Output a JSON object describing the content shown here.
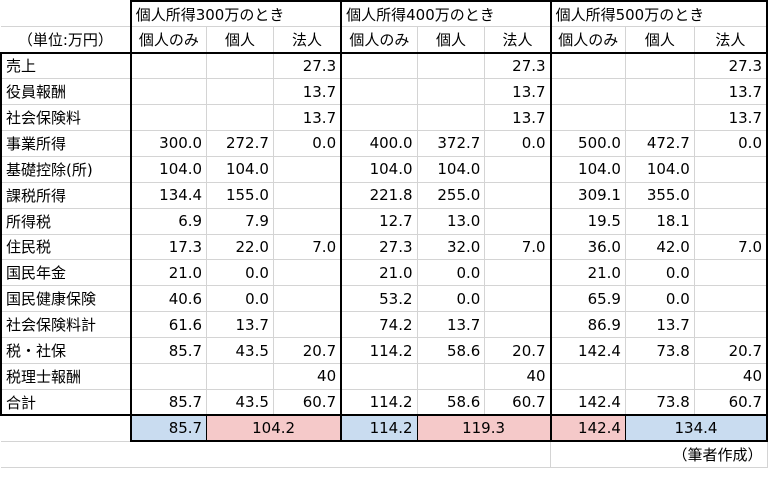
{
  "header": {
    "unit_label": "（単位:万円）",
    "groups": [
      "個人所得300万のとき",
      "個人所得400万のとき",
      "個人所得500万のとき"
    ],
    "subheaders": [
      "個人のみ",
      "個人",
      "法人"
    ]
  },
  "rows": [
    {
      "label": "売上",
      "values": [
        "",
        "",
        "27.3",
        "",
        "",
        "27.3",
        "",
        "",
        "27.3"
      ]
    },
    {
      "label": "役員報酬",
      "values": [
        "",
        "",
        "13.7",
        "",
        "",
        "13.7",
        "",
        "",
        "13.7"
      ]
    },
    {
      "label": "社会保険料",
      "values": [
        "",
        "",
        "13.7",
        "",
        "",
        "13.7",
        "",
        "",
        "13.7"
      ]
    },
    {
      "label": "事業所得",
      "values": [
        "300.0",
        "272.7",
        "0.0",
        "400.0",
        "372.7",
        "0.0",
        "500.0",
        "472.7",
        "0.0"
      ]
    },
    {
      "label": "基礎控除(所)",
      "values": [
        "104.0",
        "104.0",
        "",
        "104.0",
        "104.0",
        "",
        "104.0",
        "104.0",
        ""
      ]
    },
    {
      "label": "課税所得",
      "values": [
        "134.4",
        "155.0",
        "",
        "221.8",
        "255.0",
        "",
        "309.1",
        "355.0",
        ""
      ]
    },
    {
      "label": "所得税",
      "values": [
        "6.9",
        "7.9",
        "",
        "12.7",
        "13.0",
        "",
        "19.5",
        "18.1",
        ""
      ]
    },
    {
      "label": "住民税",
      "values": [
        "17.3",
        "22.0",
        "7.0",
        "27.3",
        "32.0",
        "7.0",
        "36.0",
        "42.0",
        "7.0"
      ]
    },
    {
      "label": "国民年金",
      "values": [
        "21.0",
        "0.0",
        "",
        "21.0",
        "0.0",
        "",
        "21.0",
        "0.0",
        ""
      ]
    },
    {
      "label": "国民健康保険",
      "values": [
        "40.6",
        "0.0",
        "",
        "53.2",
        "0.0",
        "",
        "65.9",
        "0.0",
        ""
      ]
    },
    {
      "label": "社会保険料計",
      "values": [
        "61.6",
        "13.7",
        "",
        "74.2",
        "13.7",
        "",
        "86.9",
        "13.7",
        ""
      ]
    },
    {
      "label": "税・社保",
      "values": [
        "85.7",
        "43.5",
        "20.7",
        "114.2",
        "58.6",
        "20.7",
        "142.4",
        "73.8",
        "20.7"
      ]
    },
    {
      "label": "税理士報酬",
      "values": [
        "",
        "",
        "40",
        "",
        "",
        "40",
        "",
        "",
        "40"
      ]
    },
    {
      "label": "合計",
      "values": [
        "85.7",
        "43.5",
        "60.7",
        "114.2",
        "58.6",
        "60.7",
        "142.4",
        "73.8",
        "60.7"
      ]
    }
  ],
  "summary": [
    {
      "single": "85.7",
      "single_color": "#c9dcf0",
      "combined": "104.2",
      "combined_color": "#f5c9c9"
    },
    {
      "single": "114.2",
      "single_color": "#c9dcf0",
      "combined": "119.3",
      "combined_color": "#f5c9c9"
    },
    {
      "single": "142.4",
      "single_color": "#f5c9c9",
      "combined": "134.4",
      "combined_color": "#c9dcf0"
    }
  ],
  "footnote": "（筆者作成）"
}
